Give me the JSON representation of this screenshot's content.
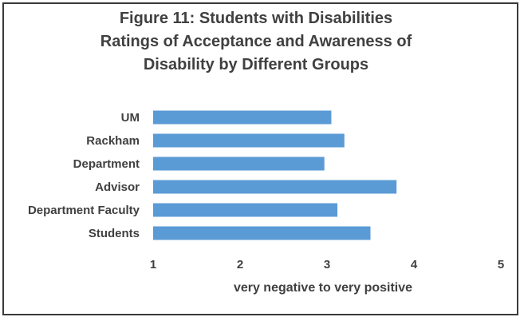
{
  "chart_data": {
    "type": "bar",
    "orientation": "horizontal",
    "title": [
      "Figure 11: Students with Disabilities",
      "Ratings of Acceptance and Awareness of",
      "Disability by Different Groups"
    ],
    "categories": [
      "UM",
      "Rackham",
      "Department",
      "Advisor",
      "Department Faculty",
      "Students"
    ],
    "values": [
      3.05,
      3.2,
      2.97,
      3.8,
      3.12,
      3.5
    ],
    "xlabel": "very negative to very positive",
    "ylabel": "",
    "xlim": [
      1,
      5
    ],
    "xticks": [
      "1",
      "2",
      "3",
      "4",
      "5"
    ],
    "bar_color": "#5b9bd5",
    "grid": false,
    "legend": "none"
  }
}
